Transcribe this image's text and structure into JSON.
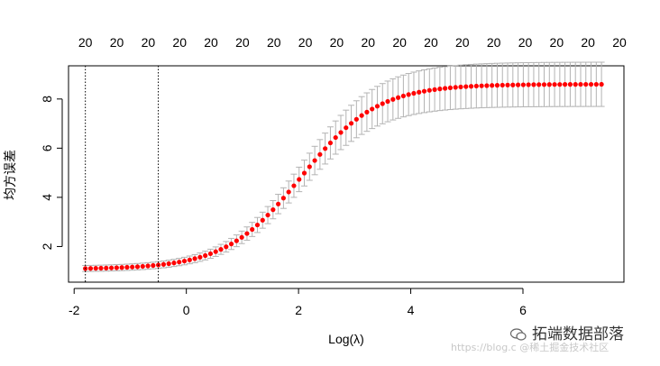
{
  "chart_data": {
    "type": "scatter",
    "title": "",
    "xlabel": "Log(λ)",
    "ylabel": "均方误差",
    "xlim": [
      -2.1,
      7.8
    ],
    "ylim": [
      0.55,
      9.35
    ],
    "x_ticks": [
      -2,
      0,
      2,
      4,
      6
    ],
    "y_ticks": [
      2,
      4,
      6,
      8
    ],
    "x_tick_labels": [
      "-2",
      "0",
      "2",
      "4",
      "6"
    ],
    "y_tick_labels": [
      "2",
      "4",
      "6",
      "8"
    ],
    "top_axis_labels": [
      "20",
      "20",
      "20",
      "20",
      "20",
      "20",
      "20",
      "20",
      "20",
      "20",
      "20",
      "20",
      "20",
      "20",
      "20",
      "20",
      "20",
      "20"
    ],
    "top_axis_positions": [
      -1.8,
      -1.24,
      -0.68,
      -0.12,
      0.44,
      1.0,
      1.56,
      2.12,
      2.68,
      3.24,
      3.8,
      4.36,
      4.92,
      5.48,
      6.04,
      6.6,
      7.16,
      7.72
    ],
    "vlines": [
      -1.8,
      -0.5
    ],
    "n_points": 100,
    "x_range": [
      -1.8,
      7.4
    ],
    "curve": {
      "low": 1.08,
      "high": 8.6,
      "midpoint": 2.05,
      "steepness": 1.48
    },
    "error_bar_halfwidth": {
      "min": 0.12,
      "max": 0.9
    },
    "point_color": "#ff0000",
    "error_bar_color": "#b3b3b3",
    "grid": false,
    "legend": "none"
  },
  "watermarks": {
    "wechat": "拓端数据部落",
    "csdn": "@稀土掘金技术社区"
  },
  "csdn_url": "https://blog.c"
}
